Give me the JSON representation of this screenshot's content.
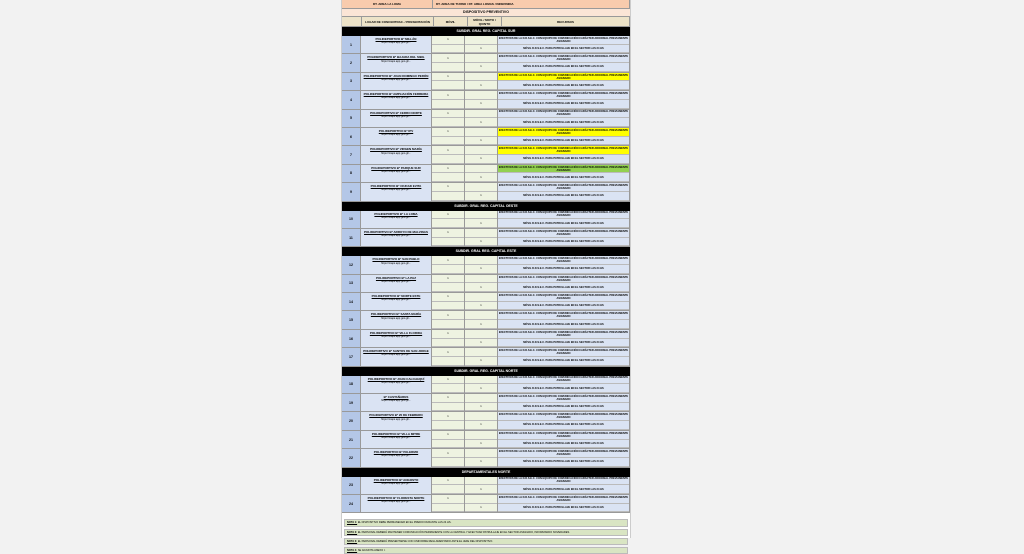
{
  "header": {
    "left": "DT. AREA LA LOMA",
    "right": "DT. AREA DE TURNO / DT. AREA LOMAS / INDEFINIDA"
  },
  "title": "DISPOSITIVO PREVENTIVO",
  "columns": [
    "",
    "LUGAR DE CONCENTRAC. / PRESENTACIÓN",
    "MÓVIL",
    "MÓVIL / MOTO / QUINTO",
    "RECURSOS"
  ],
  "recurso_top": "EFECTIVOS DE LA D.D.S.E.C. CON EQUIPO DE COMUNICACIÓN CARÁCTER ADICIONAL PREVIAMENTE ASIGNADO",
  "recurso_bottom": "MÓVIL D.D.S.E.C. PARA PATRULLAJE EN EL SECTOR LAS 24 HS",
  "colors": {
    "yellow": "#ffff00",
    "green": "#92d050",
    "section": "#000000"
  },
  "sections": [
    {
      "name": "SUBDIR. GRAL REG. CAPITAL SUR",
      "rows": [
        {
          "n": "1",
          "place": "POLIDEPORTIVO Bº MILLÁN",
          "addr": "https://maps.app.goo.gl/...",
          "hl": ""
        },
        {
          "n": "2",
          "place": "POLIDEPORTIVO Bº BAJADA DEL SIBIL",
          "addr": "https://maps.app.goo.gl/...",
          "hl": ""
        },
        {
          "n": "3",
          "place": "POLIDEPORTIVO Bº JUAN DOMINGO PERÓN",
          "addr": "https://maps.app.goo.gl/...",
          "hl": "yellow"
        },
        {
          "n": "4",
          "place": "POLIDEPORTIVO Bº AMPLIACIÓN FERREIRA",
          "addr": "https://maps.app.goo.gl/...",
          "hl": ""
        },
        {
          "n": "5",
          "place": "POLIDEPORTIVO Bº CERRO NORTE",
          "addr": "https://maps.app.goo.gl/...",
          "hl": ""
        },
        {
          "n": "6",
          "place": "POLIDEPORTIVO Bº IPV",
          "addr": "https://maps.app.goo.gl/...",
          "hl": "yellow"
        },
        {
          "n": "7",
          "place": "POLIDEPORTIVO Bº VIRGEN MARÍA",
          "addr": "https://maps.app.goo.gl/...",
          "hl": "yellow"
        },
        {
          "n": "8",
          "place": "POLIDEPORTIVO Bº PARQUE SUR",
          "addr": "https://maps.app.goo.gl/...",
          "hl": "green"
        },
        {
          "n": "9",
          "place": "POLIDEPORTIVO Bº CIUDAD EVITA",
          "addr": "https://maps.app.goo.gl/...",
          "hl": ""
        }
      ]
    },
    {
      "name": "SUBDIR. GRAL REG. CAPITAL OESTE",
      "rows": [
        {
          "n": "10",
          "place": "POLIDEPORTIVO Bº LA LOMA",
          "addr": "https://maps.app.goo.gl/...",
          "hl": ""
        },
        {
          "n": "11",
          "place": "POLIDEPORTIVO Bº ARROYO DE MALVINAS",
          "addr": "https://maps.app.goo.gl/...",
          "hl": ""
        }
      ]
    },
    {
      "name": "SUBDIR. GRAL REG. CAPITAL ESTE",
      "rows": [
        {
          "n": "12",
          "place": "POLIDEPORTIVO Bº SAN PABLO",
          "addr": "https://maps.app.goo.gl/...",
          "hl": ""
        },
        {
          "n": "13",
          "place": "POLIDEPORTIVO Bº LA PAZ",
          "addr": "https://maps.app.goo.gl/...",
          "hl": ""
        },
        {
          "n": "14",
          "place": "POLIDEPORTIVO Bº NORTE ESTE",
          "addr": "https://maps.app.goo.gl/...",
          "hl": ""
        },
        {
          "n": "15",
          "place": "POLIDEPORTIVO Bº SANTA MARÍA",
          "addr": "https://maps.app.goo.gl/...",
          "hl": ""
        },
        {
          "n": "16",
          "place": "POLIDEPORTIVO Bº VILLA FLORIDA",
          "addr": "https://maps.app.goo.gl/...",
          "hl": ""
        },
        {
          "n": "17",
          "place": "POLIDEPORTIVO Bº SANTOS DE SAN JORGE",
          "addr": "https://maps.app.goo.gl/...",
          "hl": ""
        }
      ]
    },
    {
      "name": "SUBDIR. GRAL REG. CAPITAL NORTE",
      "rows": [
        {
          "n": "18",
          "place": "POLIDEPORTIVO Bº JUAN CALCHAQUÍ",
          "addr": "https://maps.app.goo.gl/...",
          "hl": ""
        },
        {
          "n": "19",
          "place": "Bº CASTAÑARES",
          "addr": "https://maps.app.goo.gl/...",
          "hl": ""
        },
        {
          "n": "20",
          "place": "POLIDEPORTIVO Bº 20 DE FEBRERO",
          "addr": "https://maps.app.goo.gl/...",
          "hl": ""
        },
        {
          "n": "21",
          "place": "POLIDEPORTIVO Bº VILLA MITRE",
          "addr": "https://maps.app.goo.gl/...",
          "hl": ""
        },
        {
          "n": "22",
          "place": "POLIDEPORTIVO Bº PALERMO",
          "addr": "https://maps.app.goo.gl/...",
          "hl": ""
        }
      ]
    },
    {
      "name": "DEPARTAMENTALES NORTE",
      "rows": [
        {
          "n": "23",
          "place": "POLIDEPORTIVO Bº ANGOSTO",
          "addr": "https://maps.app.goo.gl/...",
          "hl": ""
        },
        {
          "n": "24",
          "place": "POLIDEPORTIVO Bº FLORESTA NORTE",
          "addr": "https://maps.app.goo.gl/...",
          "hl": ""
        }
      ]
    }
  ],
  "notes": [
    {
      "label": "NOTA 1:",
      "text": "EL DISPOSITIVO DEBE PERMANECER EN EL PREDIO DURANTE LAS 24 HS."
    },
    {
      "label": "NOTA 2:",
      "text": "EL PERSONAL DEBERÁ MANTENER COMUNICACIÓN PERMANENTE CON LA CENTRAL Y EFECTUAR PATRULLAJE EN EL SECTOR ASIGNADO, INFORMANDO NOVEDADES."
    },
    {
      "label": "NOTA 3:",
      "text": "EL PERSONAL DEBERÁ PRESENTARSE CON UNIFORME REGLAMENTARIO ANTE EL JEFE DEL DISPOSITIVO."
    },
    {
      "label": "NOTA 4:",
      "text": "SE ADJUNTA ANEXO I."
    }
  ]
}
